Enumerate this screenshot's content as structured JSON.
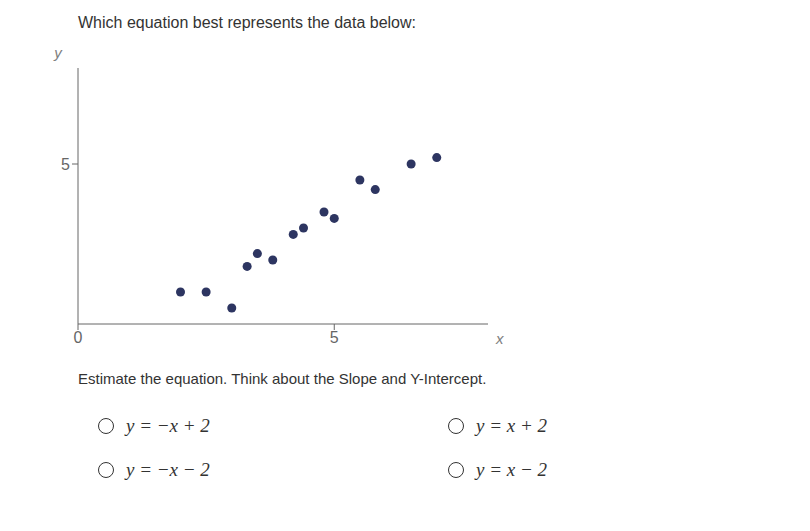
{
  "chart_data": {
    "type": "scatter",
    "title": "Which equation best represents the data below:",
    "subtitle": "Estimate the equation. Think about the Slope and Y-Intercept.",
    "x": [
      2.0,
      2.5,
      3.0,
      3.3,
      3.5,
      3.8,
      4.2,
      4.4,
      4.8,
      5.0,
      5.5,
      5.8,
      6.5,
      7.0
    ],
    "values": [
      1.0,
      1.0,
      0.5,
      1.8,
      2.2,
      2.0,
      2.8,
      3.0,
      3.5,
      3.3,
      4.5,
      4.2,
      5.0,
      5.2
    ],
    "color": "#2d3561",
    "xlim": [
      0,
      8
    ],
    "ylim": [
      0,
      8
    ],
    "xticks": [
      0,
      5
    ],
    "yticks": [
      5
    ],
    "xlabel": "x",
    "ylabel": "y",
    "grid": false,
    "legend": false,
    "options": [
      "y = −x + 2",
      "y = x + 2",
      "y = −x − 2",
      "y = x − 2"
    ]
  }
}
